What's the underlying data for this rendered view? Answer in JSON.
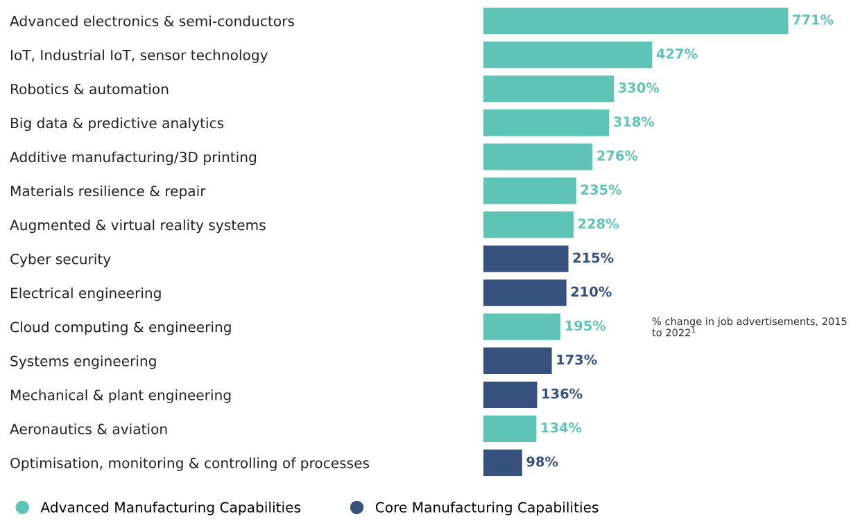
{
  "chart_data": {
    "type": "bar",
    "orientation": "horizontal",
    "categories": [
      "Advanced electronics & semi-conductors",
      "IoT, Industrial IoT, sensor technology",
      "Robotics & automation",
      "Big data & predictive analytics",
      "Additive manufacturing/3D printing",
      "Materials resilience & repair",
      "Augmented & virtual reality systems",
      "Cyber security",
      "Electrical engineering",
      "Cloud computing & engineering",
      "Systems engineering",
      "Mechanical & plant engineering",
      "Aeronautics & aviation",
      "Optimisation, monitoring & controlling of processes"
    ],
    "series": [
      {
        "name": "Advanced Manufacturing Capabilities",
        "color": "#5ec4b6",
        "values": [
          771,
          427,
          330,
          318,
          276,
          235,
          228,
          null,
          null,
          195,
          null,
          null,
          134,
          null
        ],
        "value_labels": [
          "771%",
          "427%",
          "330%",
          "318%",
          "276%",
          "235%",
          "228%",
          null,
          null,
          "195%",
          null,
          null,
          "134%",
          null
        ]
      },
      {
        "name": "Core Manufacturing Capabilities",
        "color": "#37517e",
        "values": [
          null,
          null,
          null,
          null,
          null,
          null,
          null,
          215,
          210,
          null,
          173,
          136,
          null,
          98
        ],
        "value_labels": [
          null,
          null,
          null,
          null,
          null,
          null,
          null,
          "215%",
          "210%",
          null,
          "173%",
          "136%",
          null,
          "98%"
        ]
      }
    ],
    "annotations": [
      "% change in job advertisements, 2015 to 2022$^{1}$"
    ],
    "legend": "bottom",
    "grid": false,
    "tick_labels": "y"
  }
}
